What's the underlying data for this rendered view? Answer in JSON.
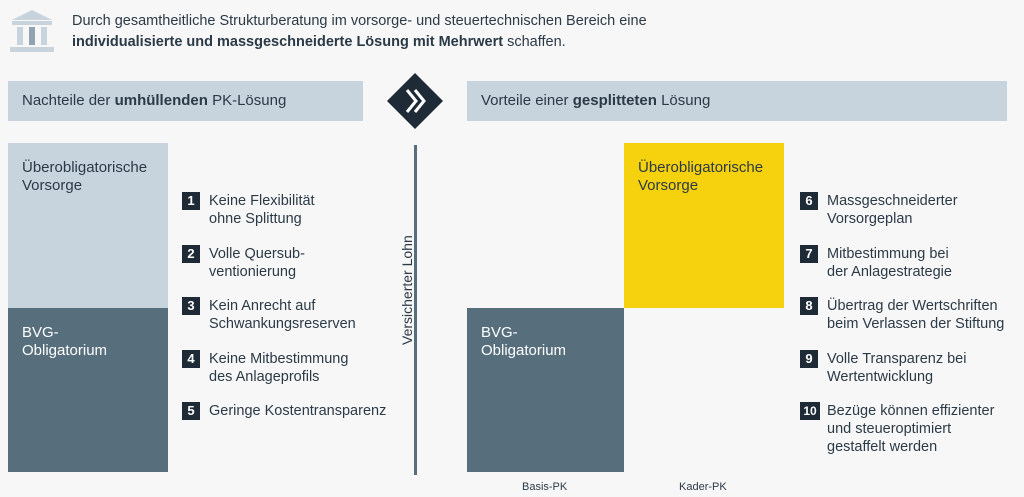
{
  "intro": {
    "line1": "Durch gesamtheitliche Strukturberatung im vorsorge- und steuertechnischen Bereich eine",
    "line2_bold": "individualisierte und massgeschneiderte Lösung mit Mehrwert",
    "line2_rest": " schaffen."
  },
  "left_header": {
    "prefix": "Nachteile der ",
    "bold": "umhüllenden",
    "suffix": " PK-Lösung"
  },
  "right_header": {
    "prefix": "Vorteile einer ",
    "bold": "gesplitteten",
    "suffix": " Lösung"
  },
  "left_blocks": {
    "top": "Überobligatorische\nVorsorge",
    "bottom": "BVG-\nObligatorium"
  },
  "right_blocks": {
    "top": "Überobligatorische\nVorsorge",
    "bottom": "BVG-\nObligatorium"
  },
  "axis_label": "Versicherter Lohn",
  "left_items": [
    {
      "num": "1",
      "text": "Keine Flexibilität\nohne Splittung"
    },
    {
      "num": "2",
      "text": "Volle Quersub-\nventionierung"
    },
    {
      "num": "3",
      "text": "Kein Anrecht auf\nSchwankungsreserven"
    },
    {
      "num": "4",
      "text": "Keine Mitbestimmung\ndes Anlageprofils"
    },
    {
      "num": "5",
      "text": "Geringe Kostentransparenz"
    }
  ],
  "right_items": [
    {
      "num": "6",
      "text": "Massgeschneiderter\nVorsorgeplan"
    },
    {
      "num": "7",
      "text": "Mitbestimmung bei\nder Anlagestrategie"
    },
    {
      "num": "8",
      "text": "Übertrag der Wertschriften\nbeim Verlassen der Stiftung"
    },
    {
      "num": "9",
      "text": "Volle Transparenz bei\nWertentwicklung"
    },
    {
      "num": "10",
      "text": "Bezüge können effizienter\nund steueroptimiert\ngestaffelt werden"
    }
  ],
  "bottom_labels": {
    "basis": "Basis-PK",
    "kader": "Kader-PK"
  },
  "colors": {
    "light_blue": "#c7d3dd",
    "slate": "#576e7c",
    "yellow": "#f6d10d",
    "navy": "#1e2a35"
  },
  "icons": {
    "header": "bank-building-icon",
    "transition": "chevron-right-icon"
  }
}
